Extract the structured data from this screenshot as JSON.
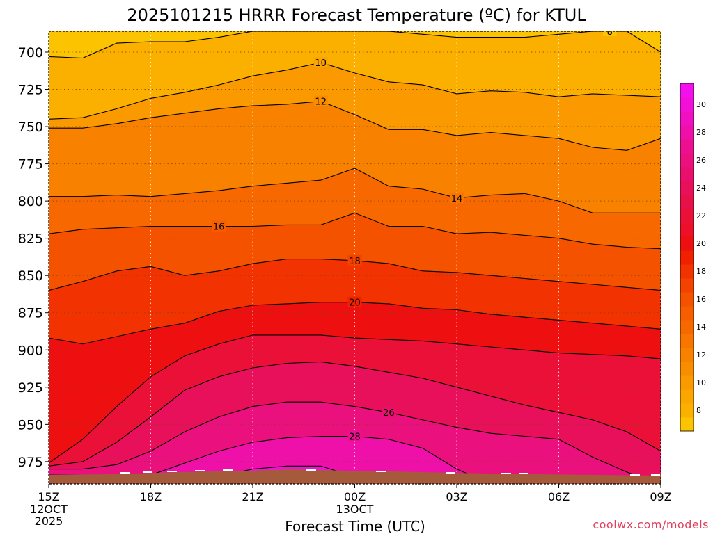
{
  "chart_data": {
    "type": "heatmap",
    "title": "2025101215 HRRR Forecast Temperature (ºC) for KTUL",
    "xlabel": "Forecast Time (UTC)",
    "ylabel": "",
    "x_ticks": [
      {
        "label": "15Z",
        "hour": 0,
        "sub": [
          "12OCT",
          "2025"
        ]
      },
      {
        "label": "18Z",
        "hour": 3,
        "sub": []
      },
      {
        "label": "21Z",
        "hour": 6,
        "sub": []
      },
      {
        "label": "00Z",
        "hour": 9,
        "sub": [
          "13OCT"
        ]
      },
      {
        "label": "03Z",
        "hour": 12,
        "sub": []
      },
      {
        "label": "06Z",
        "hour": 15,
        "sub": []
      },
      {
        "label": "09Z",
        "hour": 18,
        "sub": []
      }
    ],
    "xlim": [
      0,
      18
    ],
    "y_ticks": [
      700,
      725,
      750,
      775,
      800,
      825,
      850,
      875,
      900,
      925,
      950,
      975
    ],
    "ylim": [
      686,
      990
    ],
    "grid": true,
    "colorbar": {
      "labels": [
        8,
        10,
        12,
        14,
        16,
        18,
        20,
        22,
        24,
        26,
        28,
        30
      ],
      "levels": [
        7,
        8,
        9,
        10,
        11,
        12,
        13,
        14,
        15,
        16,
        17,
        18,
        19,
        20,
        21,
        22,
        23,
        24,
        25,
        26,
        27,
        28,
        29,
        30,
        31,
        32
      ],
      "colors": [
        "#fcc300",
        "#fbb000",
        "#fba500",
        "#fa9900",
        "#f98d00",
        "#f88100",
        "#f87500",
        "#f76900",
        "#f65e00",
        "#f55200",
        "#f44200",
        "#f23200",
        "#f02000",
        "#ee1010",
        "#ec1028",
        "#ea1038",
        "#e81048",
        "#e8105a",
        "#e8106c",
        "#ea107e",
        "#ec1090",
        "#ee10a8",
        "#f010c0",
        "#f210d8",
        "#f410ec"
      ],
      "position": "right"
    },
    "surface_color": "#a55a3c",
    "hours": [
      0,
      1,
      2,
      3,
      4,
      5,
      6,
      7,
      8,
      9,
      10,
      11,
      12,
      13,
      14,
      15,
      16,
      17,
      18
    ],
    "isotherms": [
      {
        "value": 8,
        "label": "8",
        "label_hour": 16.5,
        "p": [
          703,
          704,
          694,
          693,
          693,
          690,
          686,
          686,
          686,
          686,
          686,
          688,
          690,
          690,
          690,
          688,
          686,
          686,
          700
        ]
      },
      {
        "value": 10,
        "label": "10",
        "label_hour": 8.0,
        "p": [
          745,
          744,
          738,
          731,
          727,
          722,
          716,
          712,
          707,
          714,
          720,
          722,
          728,
          726,
          727,
          730,
          728,
          729,
          730
        ]
      },
      {
        "value": 12,
        "label": "12",
        "label_hour": 8.0,
        "p": [
          751,
          751,
          748,
          744,
          741,
          738,
          736,
          735,
          733,
          742,
          752,
          752,
          756,
          754,
          756,
          758,
          764,
          766,
          758
        ]
      },
      {
        "value": 14,
        "label": "14",
        "label_hour": 12.0,
        "p": [
          797,
          797,
          796,
          797,
          795,
          793,
          790,
          788,
          786,
          778,
          790,
          792,
          798,
          796,
          795,
          800,
          808,
          808,
          808
        ]
      },
      {
        "value": 16,
        "label": "16",
        "label_hour": 5.0,
        "p": [
          822,
          819,
          818,
          817,
          817,
          817,
          817,
          816,
          816,
          808,
          817,
          817,
          822,
          821,
          823,
          825,
          829,
          831,
          832
        ]
      },
      {
        "value": 18,
        "label": "18",
        "label_hour": 9.0,
        "p": [
          860,
          854,
          847,
          844,
          850,
          847,
          842,
          839,
          839,
          840,
          842,
          847,
          848,
          850,
          852,
          854,
          856,
          858,
          860
        ]
      },
      {
        "value": 20,
        "label": "20",
        "label_hour": 9.0,
        "p": [
          892,
          896,
          891,
          886,
          882,
          874,
          870,
          869,
          868,
          868,
          869,
          872,
          873,
          876,
          878,
          880,
          882,
          884,
          886
        ]
      },
      {
        "value": 22,
        "label": "22",
        "label_hour": -1,
        "p": [
          976,
          960,
          938,
          918,
          904,
          896,
          890,
          890,
          890,
          892,
          893,
          894,
          896,
          898,
          900,
          902,
          903,
          904,
          906
        ]
      },
      {
        "value": 24,
        "label": "24",
        "label_hour": -1,
        "p": [
          978,
          975,
          962,
          945,
          927,
          918,
          912,
          909,
          908,
          911,
          915,
          919,
          925,
          931,
          937,
          942,
          947,
          955,
          968
        ]
      },
      {
        "value": 26,
        "label": "26",
        "label_hour": 10.0,
        "p": [
          980,
          980,
          977,
          968,
          955,
          945,
          938,
          935,
          935,
          938,
          942,
          947,
          952,
          956,
          958,
          960,
          972,
          982,
          990
        ]
      },
      {
        "value": 28,
        "label": "28",
        "label_hour": 9.0,
        "p": [
          984,
          984,
          984,
          984,
          976,
          968,
          962,
          959,
          958,
          958,
          960,
          966,
          980,
          990,
          990,
          990,
          990,
          990,
          990
        ]
      },
      {
        "value": 30,
        "label": "30",
        "label_hour": -1,
        "p": [
          990,
          990,
          990,
          990,
          990,
          985,
          980,
          978,
          978,
          985,
          990,
          990,
          990,
          990,
          990,
          990,
          990,
          990,
          990
        ]
      }
    ]
  },
  "credit": "coolwx.com/models"
}
